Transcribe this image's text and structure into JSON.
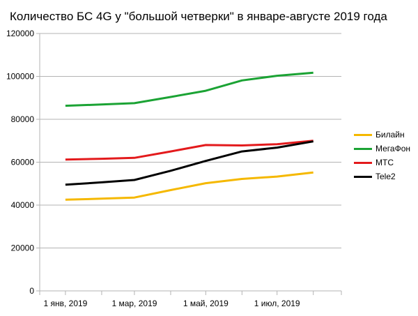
{
  "title": "Количество БС 4G у \"большой четверки\" в январе-августе 2019 года",
  "chart_data": {
    "type": "line",
    "title": "Количество БС 4G у \"большой четверки\" в январе-августе 2019 года",
    "x": [
      "2019-01-01",
      "2019-02-01",
      "2019-03-01",
      "2019-04-01",
      "2019-05-01",
      "2019-06-01",
      "2019-07-01",
      "2019-08-01"
    ],
    "x_tick_labels": [
      {
        "date": "2019-01-01",
        "label": "1 янв, 2019"
      },
      {
        "date": "2019-03-01",
        "label": "1 мар, 2019"
      },
      {
        "date": "2019-05-01",
        "label": "1 май, 2019"
      },
      {
        "date": "2019-07-01",
        "label": "1 июл, 2019"
      }
    ],
    "xlim": [
      "2018-12-10",
      "2019-08-25"
    ],
    "ylim": [
      0,
      120000
    ],
    "y_ticks": [
      0,
      20000,
      40000,
      60000,
      80000,
      100000,
      120000
    ],
    "y_tick_labels": [
      "0",
      "20000",
      "40000",
      "60000",
      "80000",
      "100000",
      "120000"
    ],
    "grid": "horizontal",
    "legend_position": "right",
    "series": [
      {
        "name": "Билайн",
        "color": "#f5b800",
        "values": [
          42500,
          43000,
          43500,
          47000,
          50200,
          52200,
          53300,
          55200
        ]
      },
      {
        "name": "МегаФон",
        "color": "#1ba334",
        "values": [
          86300,
          86900,
          87500,
          90400,
          93300,
          98100,
          100300,
          101700
        ]
      },
      {
        "name": "МТС",
        "color": "#e31a1c",
        "values": [
          61200,
          61600,
          62000,
          65000,
          68000,
          67800,
          68400,
          70000
        ]
      },
      {
        "name": "Tele2",
        "color": "#000000",
        "values": [
          49500,
          50600,
          51700,
          56000,
          60600,
          65000,
          66800,
          69700
        ]
      }
    ]
  }
}
